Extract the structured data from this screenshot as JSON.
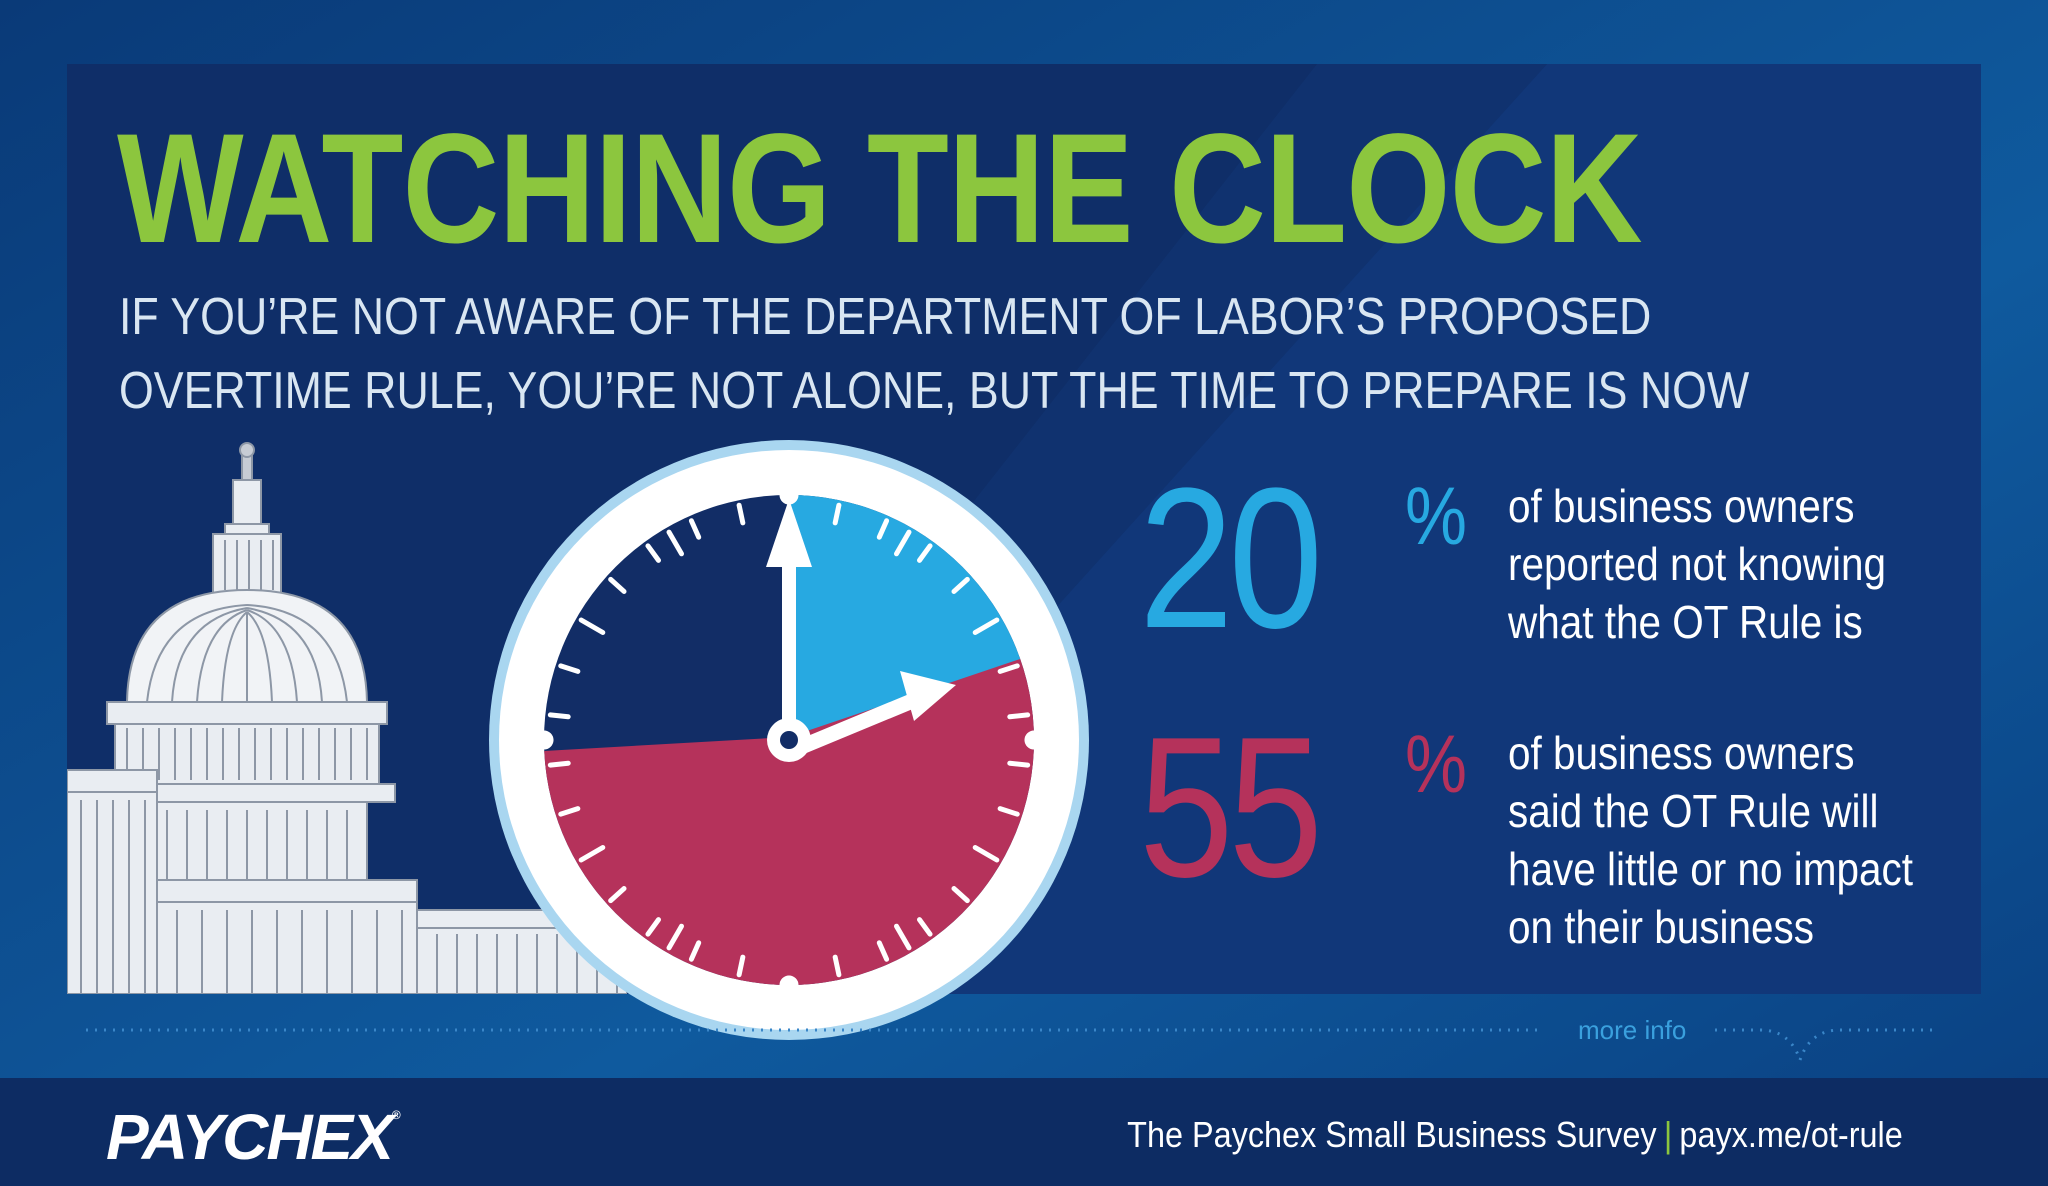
{
  "headline": {
    "title": "WATCHING THE CLOCK",
    "subtitle_line1": "IF YOU’RE NOT AWARE OF THE DEPARTMENT OF LABOR’S PROPOSED",
    "subtitle_line2": "OVERTIME RULE, YOU’RE NOT ALONE, BUT THE TIME TO PREPARE IS NOW"
  },
  "stats": [
    {
      "number": "20",
      "unit": "%",
      "value_percent": 20,
      "lines": [
        "of business owners",
        "reported not knowing",
        "what the OT Rule is"
      ],
      "color": "#27a9e1"
    },
    {
      "number": "55",
      "unit": "%",
      "value_percent": 55,
      "lines": [
        "of business owners",
        "said the OT Rule will",
        "have little or no impact",
        "on their business"
      ],
      "color": "#b5325b"
    }
  ],
  "colors": {
    "title_green": "#8cc63e",
    "panel_navy": "#0d2c63",
    "blue": "#27a9e1",
    "crimson": "#b5325b",
    "background_blue": "#0b3f7e"
  },
  "icons": [
    "capitol-building-icon",
    "clock-icon"
  ],
  "more_info": "more info",
  "footer": {
    "logo": "PAYCHEX",
    "logo_mark": "®",
    "survey": "The Paychex Small Business Survey",
    "separator": "|",
    "link": "payx.me/ot-rule"
  }
}
